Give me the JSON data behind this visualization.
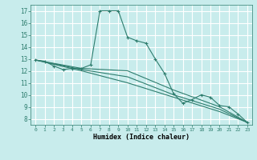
{
  "xlabel": "Humidex (Indice chaleur)",
  "background_color": "#c8ecec",
  "grid_color": "#ffffff",
  "line_color": "#2e7d6e",
  "xlim": [
    -0.5,
    23.5
  ],
  "ylim": [
    7.5,
    17.5
  ],
  "xticks": [
    0,
    1,
    2,
    3,
    4,
    5,
    6,
    7,
    8,
    9,
    10,
    11,
    12,
    13,
    14,
    15,
    16,
    17,
    18,
    19,
    20,
    21,
    22,
    23
  ],
  "yticks": [
    8,
    9,
    10,
    11,
    12,
    13,
    14,
    15,
    16,
    17
  ],
  "series": [
    {
      "x": [
        0,
        1,
        2,
        3,
        4,
        5,
        6,
        7,
        8,
        9,
        10,
        11,
        12,
        13,
        14,
        15,
        16,
        17,
        18,
        19,
        20,
        21,
        22,
        23
      ],
      "y": [
        12.9,
        12.8,
        12.4,
        12.1,
        12.2,
        12.2,
        12.5,
        17.0,
        17.0,
        17.0,
        14.8,
        14.5,
        14.3,
        13.0,
        11.8,
        10.1,
        9.3,
        9.6,
        10.0,
        9.8,
        9.1,
        9.0,
        8.4,
        7.7
      ],
      "has_markers": true
    },
    {
      "x": [
        0,
        5,
        10,
        15,
        20,
        23
      ],
      "y": [
        12.9,
        12.2,
        12.0,
        10.4,
        9.0,
        7.7
      ],
      "has_markers": false
    },
    {
      "x": [
        0,
        5,
        10,
        15,
        20,
        23
      ],
      "y": [
        12.9,
        12.1,
        11.5,
        10.0,
        8.8,
        7.7
      ],
      "has_markers": false
    },
    {
      "x": [
        0,
        5,
        10,
        15,
        20,
        23
      ],
      "y": [
        12.9,
        12.0,
        11.0,
        9.8,
        8.6,
        7.7
      ],
      "has_markers": false
    }
  ]
}
